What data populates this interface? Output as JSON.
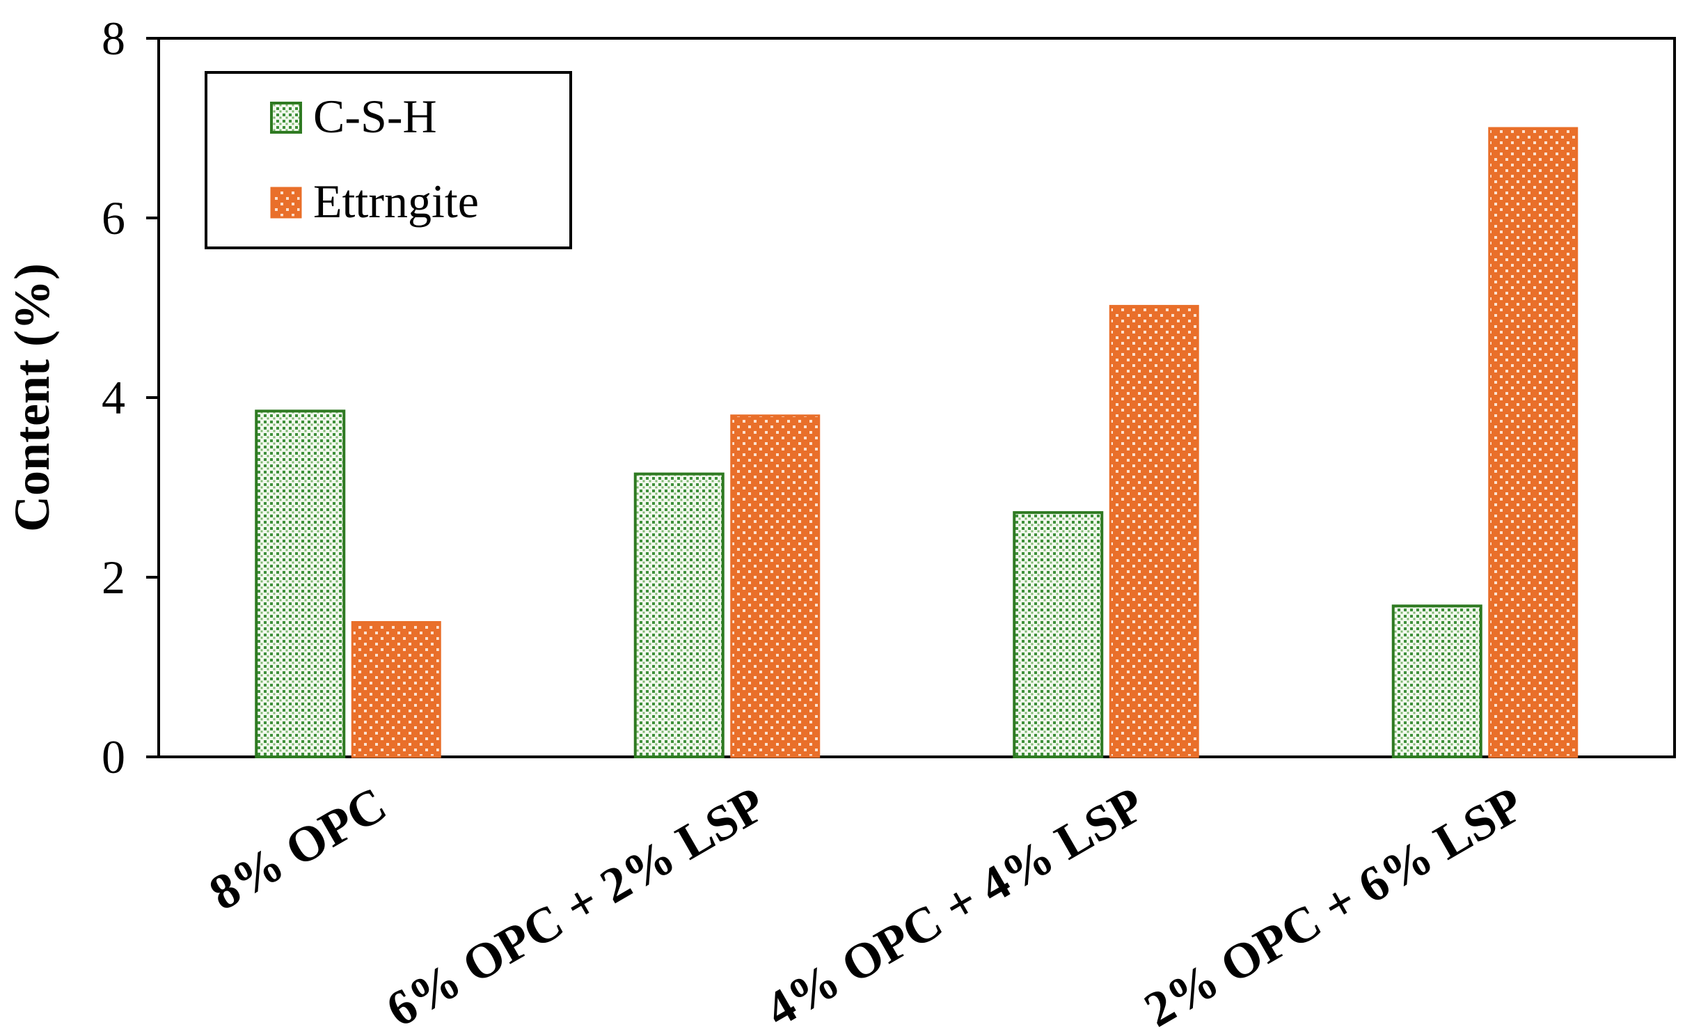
{
  "chart_data": {
    "type": "bar",
    "title": "",
    "xlabel": "",
    "ylabel": "Content (%)",
    "ylim": [
      0,
      8
    ],
    "yticks": [
      0,
      2,
      4,
      6,
      8
    ],
    "grid": false,
    "legend_position": "top-left",
    "categories": [
      "8% OPC",
      "6% OPC + 2% LSP",
      "4% OPC + 4% LSP",
      "2% OPC + 6% LSP"
    ],
    "series": [
      {
        "name": "C-S-H",
        "values": [
          3.85,
          3.15,
          2.72,
          1.68
        ],
        "fill": "#f3f9ee",
        "dot": "#3e8f3a",
        "stroke": "#2f7a22"
      },
      {
        "name": "Ettrngite",
        "values": [
          1.5,
          3.8,
          5.02,
          7.0
        ],
        "fill": "#e96f2a",
        "dot": "#fbe1cf",
        "stroke": "#e96f2a"
      }
    ]
  }
}
